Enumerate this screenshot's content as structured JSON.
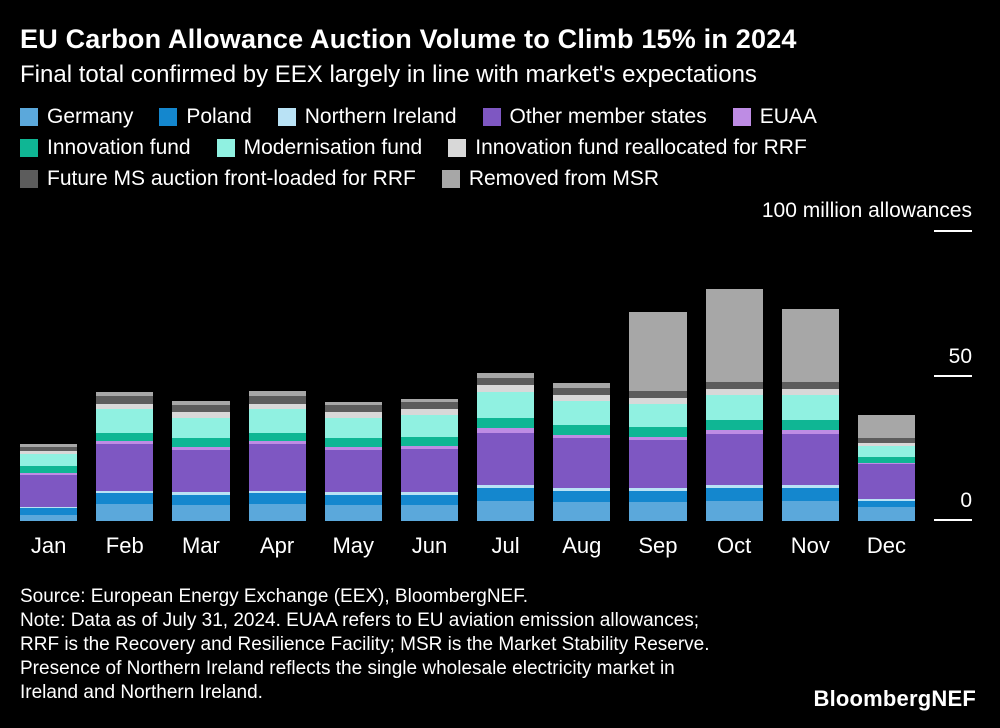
{
  "header": {
    "title": "EU Carbon Allowance Auction Volume to Climb 15% in 2024",
    "subtitle": "Final total confirmed by EEX largely in line with market's expectations"
  },
  "axis": {
    "unit_label": "100 million allowances",
    "mid_tick": "50",
    "base_tick": "0"
  },
  "chart_data": {
    "type": "bar",
    "stacked": true,
    "grid": false,
    "legend_position": "top",
    "title": "EU Carbon Allowance Auction Volume to Climb 15% in 2024",
    "xlabel": "",
    "ylabel": "million allowances",
    "ylim": [
      0,
      100
    ],
    "categories": [
      "Jan",
      "Feb",
      "Mar",
      "Apr",
      "May",
      "Jun",
      "Jul",
      "Aug",
      "Sep",
      "Oct",
      "Nov",
      "Dec"
    ],
    "series": [
      {
        "name": "Germany",
        "color": "#5BA8DB",
        "values": [
          2,
          6,
          5.5,
          6,
          5.5,
          5.5,
          7,
          6.5,
          6.5,
          7,
          7,
          5
        ]
      },
      {
        "name": "Poland",
        "color": "#1487CE",
        "values": [
          2.5,
          3.5,
          3.5,
          3.5,
          3.5,
          3.5,
          4.5,
          4,
          4,
          4.5,
          4.5,
          2
        ]
      },
      {
        "name": "Northern Ireland",
        "color": "#B9E2F5",
        "values": [
          0.5,
          1,
          1,
          1,
          1,
          1,
          1,
          1,
          1,
          1,
          1,
          0.5
        ]
      },
      {
        "name": "Other member states",
        "color": "#7E57C2",
        "values": [
          11,
          16,
          14.5,
          16,
          14.5,
          15,
          18,
          17,
          16.5,
          17.5,
          17.5,
          12
        ]
      },
      {
        "name": "EUAA",
        "color": "#BE8CE4",
        "values": [
          0.5,
          1,
          1,
          1,
          1,
          1,
          1.5,
          1,
          1,
          1.5,
          1.5,
          0.5
        ]
      },
      {
        "name": "Innovation fund",
        "color": "#0FB694",
        "values": [
          2.5,
          3,
          3,
          3,
          3,
          3,
          3.5,
          3.5,
          3.5,
          3.5,
          3.5,
          2
        ]
      },
      {
        "name": "Modernisation fund",
        "color": "#90F1E1",
        "values": [
          4,
          8,
          7,
          8,
          7,
          7.5,
          9,
          8.5,
          8,
          8.5,
          8.5,
          4
        ]
      },
      {
        "name": "Innovation fund reallocated for RRF",
        "color": "#D8D8D8",
        "values": [
          1,
          2,
          2,
          2,
          2,
          2,
          2.5,
          2,
          2,
          2,
          2,
          1
        ]
      },
      {
        "name": "Future MS auction front-loaded for RRF",
        "color": "#5C5C5C",
        "values": [
          1.5,
          2.5,
          2.5,
          2.5,
          2.5,
          2.5,
          2.5,
          2.5,
          2.5,
          2.5,
          2.5,
          1.5
        ]
      },
      {
        "name": "Removed from MSR",
        "color": "#A7A7A7",
        "values": [
          1,
          1.5,
          1.5,
          2,
          1,
          1,
          1.5,
          1.5,
          27,
          32,
          25,
          8
        ]
      }
    ]
  },
  "footer": {
    "source": "Source: European Energy Exchange (EEX), BloombergNEF.",
    "note_lines": [
      "Note: Data as of July 31, 2024. EUAA refers to EU aviation emission allowances;",
      "RRF is the Recovery and Resilience Facility; MSR is the Market Stability Reserve.",
      "Presence of Northern Ireland reflects the single wholesale electricity market in",
      "Ireland and Northern Ireland."
    ],
    "logo": "BloombergNEF"
  }
}
